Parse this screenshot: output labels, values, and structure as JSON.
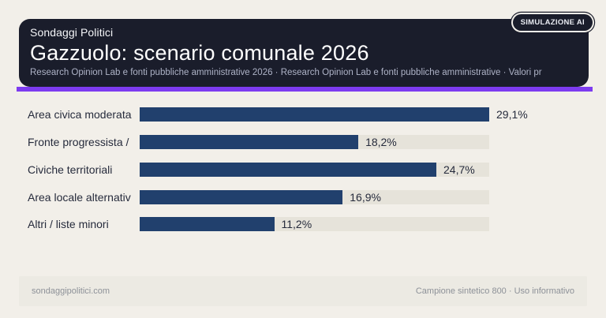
{
  "header": {
    "badge": "SIMULAZIONE AI",
    "brand": "Sondaggi Politici",
    "title": "Gazzuolo: scenario comunale 2026",
    "subtitle": "Research Opinion Lab e fonti pubbliche amministrative 2026 · Research Opinion Lab e fonti pubbliche amministrative · Valori pr"
  },
  "chart_data": {
    "type": "bar",
    "orientation": "horizontal",
    "title": "Gazzuolo: scenario comunale 2026",
    "categories": [
      "Area civica moderata",
      "Fronte progressista /",
      "Civiche territoriali",
      "Area locale alternativ",
      "Altri / liste minori"
    ],
    "values": [
      29.1,
      18.2,
      24.7,
      16.9,
      11.2
    ],
    "value_labels": [
      "29,1%",
      "18,2%",
      "24,7%",
      "16,9%",
      "11,2%"
    ],
    "xlim": [
      0,
      29.1
    ],
    "grid": false,
    "legend": false,
    "bars_scaled_to_max": true
  },
  "footer": {
    "left": "sondaggipolitici.com",
    "right": "Campione sintetico 800 · Uso informativo"
  },
  "colors": {
    "background": "#f2efe9",
    "header_bg": "#1a1d2b",
    "accent": "#7d3bf0",
    "bar": "#21406d",
    "track": "#e6e3da",
    "label_text": "#262b3c",
    "subtitle_text": "#aeb3c7",
    "footer_bg": "#eceae3",
    "footer_text": "#8d9198"
  }
}
